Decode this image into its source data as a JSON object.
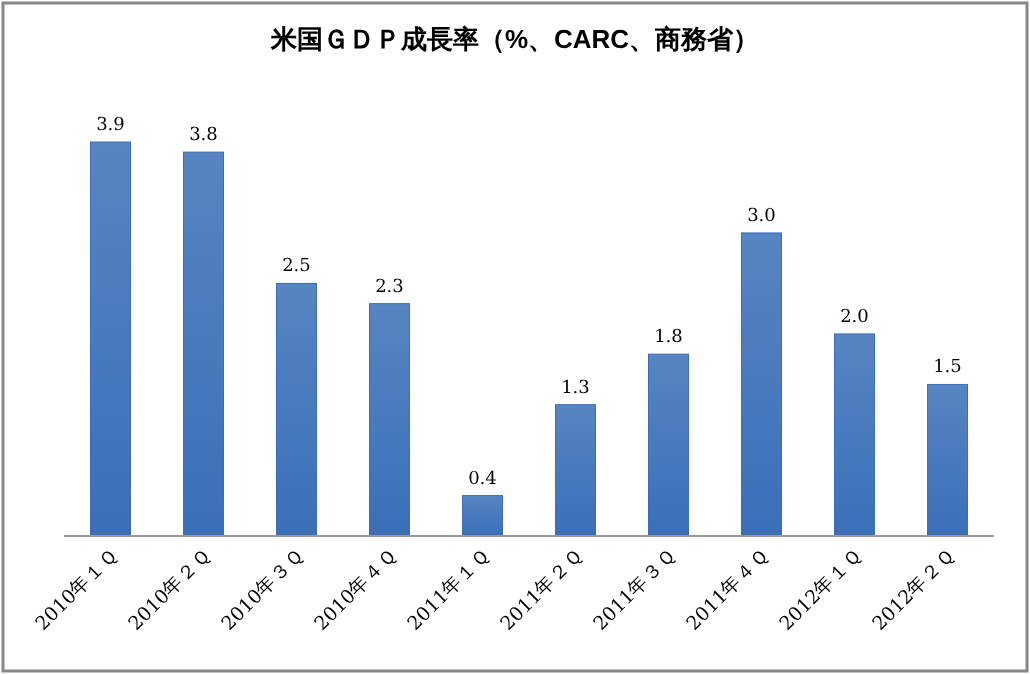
{
  "chart_data": {
    "type": "bar",
    "title": "米国ＧＤＰ成長率（%、CARC、商務省）",
    "categories": [
      "2010年１Ｑ",
      "2010年２Ｑ",
      "2010年３Ｑ",
      "2010年４Ｑ",
      "2011年１Ｑ",
      "2011年２Ｑ",
      "2011年３Ｑ",
      "2011年４Ｑ",
      "2012年１Ｑ",
      "2012年２Ｑ"
    ],
    "values": [
      3.9,
      3.8,
      2.5,
      2.3,
      0.4,
      1.3,
      1.8,
      3.0,
      2.0,
      1.5
    ],
    "value_labels": [
      "3.9",
      "3.8",
      "2.5",
      "2.3",
      "0.4",
      "1.3",
      "1.8",
      "3.0",
      "2.0",
      "1.5"
    ],
    "color": "#3a6fb8"
  }
}
